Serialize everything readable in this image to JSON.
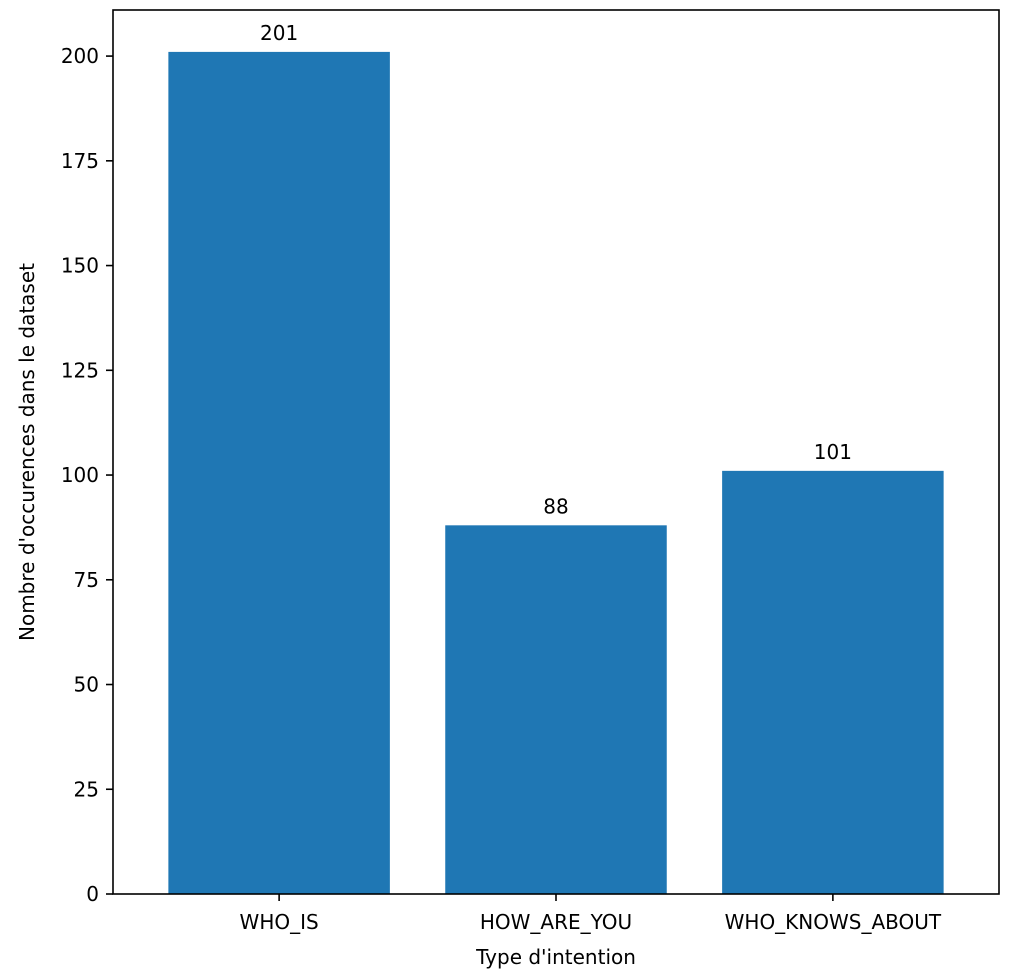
{
  "chart_data": {
    "type": "bar",
    "title": "",
    "categories": [
      "WHO_IS",
      "HOW_ARE_YOU",
      "WHO_KNOWS_ABOUT"
    ],
    "values": [
      201,
      88,
      101
    ],
    "data_labels": [
      "201",
      "88",
      "101"
    ],
    "xlabel": "Type d'intention",
    "ylabel": "Nombre d'occurences dans le dataset",
    "ylim": [
      0,
      211
    ],
    "yticks": [
      0,
      25,
      50,
      75,
      100,
      125,
      150,
      175,
      200
    ],
    "grid": false,
    "legend": "none",
    "bar_color": "#1f77b4"
  }
}
